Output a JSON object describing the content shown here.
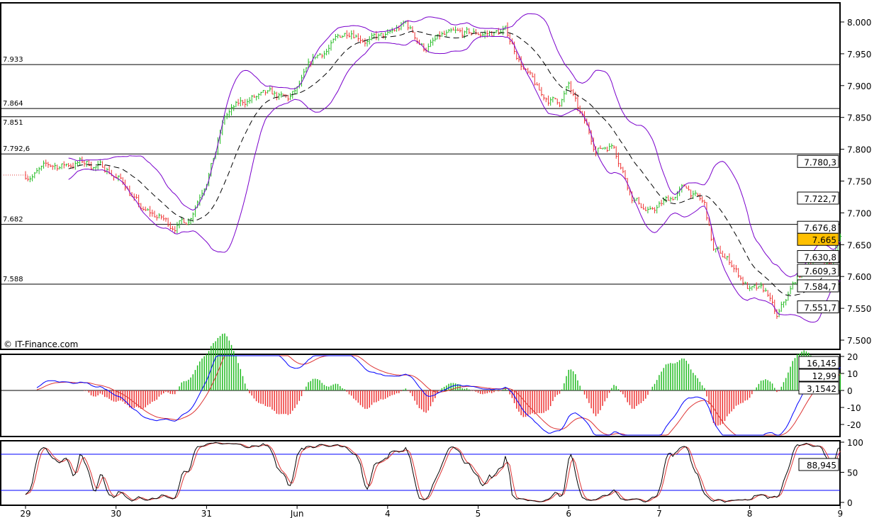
{
  "watermark": "© IT-Finance.com",
  "chart_data": [
    {
      "type": "candlestick",
      "panel": "price",
      "x_tick_labels": [
        "29",
        "30",
        "31",
        "Jun",
        "4",
        "5",
        "6",
        "7",
        "8",
        "9"
      ],
      "y_tick_labels": [
        "8.000",
        "7.950",
        "7.900",
        "7.850",
        "7.800",
        "7.750",
        "7.700",
        "7.650",
        "7.600",
        "7.550",
        "7.500"
      ],
      "ylim": [
        7.5,
        8.0
      ],
      "close_path_day_offset": [
        0.0,
        0.3,
        0.6,
        0.9,
        1.1,
        1.3,
        1.5,
        1.6,
        1.8,
        2.0,
        2.1,
        2.2,
        2.3,
        2.5,
        2.7,
        2.9,
        3.0,
        3.2,
        3.4,
        3.6,
        3.8,
        4.0,
        4.2,
        4.4,
        4.6,
        4.8,
        5.0,
        5.3,
        5.5,
        5.7,
        5.9,
        6.0,
        6.1,
        6.3,
        6.5,
        6.7,
        6.9,
        7.1,
        7.3,
        7.5,
        7.6,
        7.8,
        8.0,
        8.2,
        8.3,
        8.5,
        8.7,
        8.9,
        9.0
      ],
      "close_path_price": [
        7.76,
        7.772,
        7.78,
        7.77,
        7.745,
        7.7,
        7.69,
        7.68,
        7.69,
        7.76,
        7.8,
        7.85,
        7.862,
        7.88,
        7.88,
        7.875,
        7.89,
        7.94,
        7.965,
        7.99,
        7.975,
        7.975,
        7.995,
        7.96,
        7.975,
        7.975,
        7.98,
        7.985,
        7.93,
        7.88,
        7.875,
        7.9,
        7.86,
        7.8,
        7.81,
        7.73,
        7.7,
        7.72,
        7.74,
        7.71,
        7.64,
        7.62,
        7.58,
        7.57,
        7.53,
        7.59,
        7.63,
        7.62,
        7.665
      ],
      "overlays": [
        "Bollinger Bands",
        "Moving average (dashed)"
      ],
      "horizontal_levels": [
        {
          "label": "7.933",
          "value": 7.933
        },
        {
          "label": "7.864",
          "value": 7.864
        },
        {
          "label": "7.851",
          "value": 7.851
        },
        {
          "label": "7.792,6",
          "value": 7.7926
        },
        {
          "label": "7.682",
          "value": 7.682
        },
        {
          "label": "7.588",
          "value": 7.588
        }
      ],
      "value_tags": [
        {
          "label": "7.780,3",
          "value": 7.7803,
          "color": "#ff0000"
        },
        {
          "label": "7.722,7",
          "value": 7.7227,
          "color": "#ff0000"
        },
        {
          "label": "7.676,8",
          "value": 7.6768,
          "color": "#8000c0"
        },
        {
          "label": "7.665",
          "value": 7.665,
          "color": "#000000",
          "bg": "#ffc000"
        },
        {
          "label": "7.630,8",
          "value": 7.6308,
          "color": "#8000c0"
        },
        {
          "label": "7.609,3",
          "value": 7.6093,
          "color": "#000000"
        },
        {
          "label": "7.584,7",
          "value": 7.5847,
          "color": "#8000c0"
        },
        {
          "label": "7.551,7",
          "value": 7.5517,
          "color": "#22aa22"
        }
      ],
      "colors": {
        "up": "#22bb22",
        "down": "#ee3333",
        "bands": "#7a00cc",
        "levels": "#000000"
      }
    },
    {
      "type": "macd",
      "panel": "macd",
      "y_tick_labels": [
        "20",
        "10",
        "0",
        "-10",
        "-20"
      ],
      "ylim": [
        -25,
        23
      ],
      "value_tags": [
        {
          "label": "16,145",
          "color": "#0000ff"
        },
        {
          "label": "12,99",
          "color": "#dd4444"
        },
        {
          "label": "3,1542",
          "color": "#22bb22"
        }
      ],
      "colors": {
        "macd": "#0000ff",
        "signal": "#dd3333",
        "hist_up": "#22bb22",
        "hist_down": "#ee3333"
      }
    },
    {
      "type": "stochastic",
      "panel": "stochastic",
      "y_tick_labels": [
        "100",
        "50",
        "0"
      ],
      "ylim": [
        0,
        100
      ],
      "levels": [
        80,
        20
      ],
      "value_tags": [
        {
          "label": "88,945",
          "color": "#000000"
        }
      ],
      "colors": {
        "k": "#000000",
        "d": "#dd3333",
        "levels": "#0000ff"
      }
    }
  ]
}
